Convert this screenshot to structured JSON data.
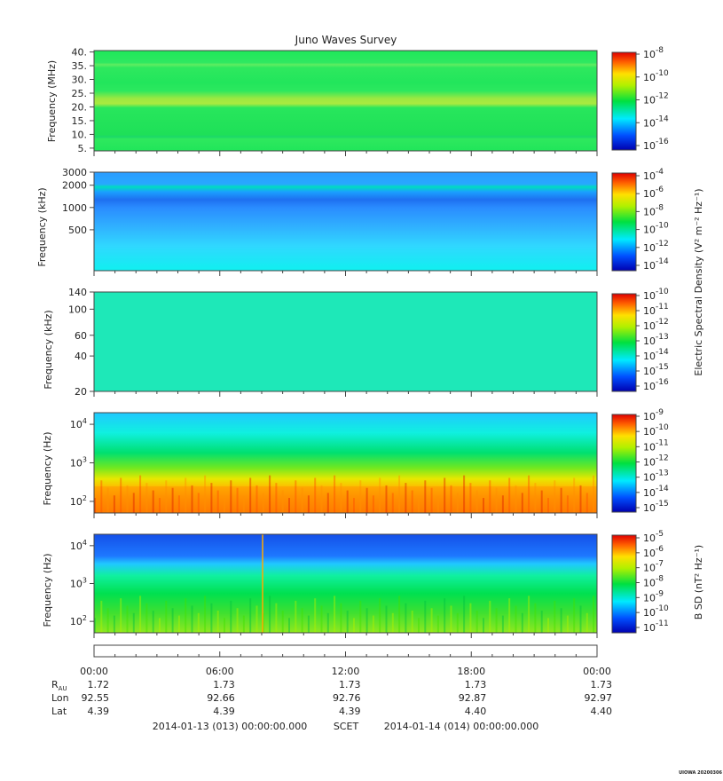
{
  "chart_data": {
    "type": "heatmap",
    "title": "Juno Waves Survey",
    "panels": [
      {
        "name": "mhz",
        "ylabel": "Frequency (MHz)",
        "yscale": "linear",
        "ylim": [
          4,
          40.5
        ],
        "yticks": [
          {
            "v": 5,
            "label": "5."
          },
          {
            "v": 10,
            "label": "10."
          },
          {
            "v": 15,
            "label": "15."
          },
          {
            "v": 20,
            "label": "20."
          },
          {
            "v": 25,
            "label": "25."
          },
          {
            "v": 30,
            "label": "30."
          },
          {
            "v": 35,
            "label": "35."
          },
          {
            "v": 40,
            "label": "40."
          }
        ],
        "colorbar": {
          "ticks": [
            "-8",
            "-10",
            "-12",
            "-14",
            "-16"
          ],
          "label": ""
        }
      },
      {
        "name": "khz-hi",
        "ylabel": "Frequency (kHz)",
        "yscale": "log",
        "ylim": [
          140,
          3000
        ],
        "yticks": [
          {
            "v": 500,
            "label": "500"
          },
          {
            "v": 1000,
            "label": "1000"
          },
          {
            "v": 2000,
            "label": "2000"
          },
          {
            "v": 3000,
            "label": "3000"
          }
        ],
        "colorbar": {
          "ticks": [
            "-4",
            "-6",
            "-8",
            "-10",
            "-12",
            "-14"
          ],
          "label": "Electric Spectral Density (V² m⁻² Hz⁻¹)"
        }
      },
      {
        "name": "khz-lo",
        "ylabel": "Frequency (kHz)",
        "yscale": "log",
        "ylim": [
          20,
          140
        ],
        "yticks": [
          {
            "v": 20,
            "label": "20"
          },
          {
            "v": 40,
            "label": "40"
          },
          {
            "v": 60,
            "label": "60"
          },
          {
            "v": 100,
            "label": "100"
          },
          {
            "v": 140,
            "label": "140"
          }
        ],
        "colorbar": {
          "ticks": [
            "-10",
            "-11",
            "-12",
            "-13",
            "-14",
            "-15",
            "-16"
          ],
          "label": ""
        }
      },
      {
        "name": "hz-e",
        "ylabel": "Frequency (Hz)",
        "yscale": "log",
        "ylim": [
          50,
          20000
        ],
        "yticks": [
          {
            "v": 100,
            "label": "10",
            "exp": "2"
          },
          {
            "v": 1000,
            "label": "10",
            "exp": "3"
          },
          {
            "v": 10000,
            "label": "10",
            "exp": "4"
          }
        ],
        "colorbar": {
          "ticks": [
            "-9",
            "-10",
            "-11",
            "-12",
            "-13",
            "-14",
            "-15"
          ],
          "label": ""
        }
      },
      {
        "name": "hz-b",
        "ylabel": "Frequency (Hz)",
        "yscale": "log",
        "ylim": [
          50,
          20000
        ],
        "yticks": [
          {
            "v": 100,
            "label": "10",
            "exp": "2"
          },
          {
            "v": 1000,
            "label": "10",
            "exp": "3"
          },
          {
            "v": 10000,
            "label": "10",
            "exp": "4"
          }
        ],
        "colorbar": {
          "ticks": [
            "-5",
            "-6",
            "-7",
            "-8",
            "-9",
            "-10",
            "-11"
          ],
          "label": "B SD (nT² Hz⁻¹)"
        }
      }
    ],
    "x_ticks": [
      "00:00",
      "06:00",
      "12:00",
      "18:00",
      "00:00"
    ],
    "ephemeris": [
      {
        "label": "R",
        "sub": "AU",
        "values": [
          "1.72",
          "1.73",
          "1.73",
          "1.73",
          "1.73"
        ]
      },
      {
        "label": "Lon",
        "values": [
          "92.55",
          "92.66",
          "92.76",
          "92.87",
          "92.97"
        ]
      },
      {
        "label": "Lat",
        "values": [
          "4.39",
          "4.39",
          "4.39",
          "4.40",
          "4.40"
        ]
      }
    ],
    "time_range": {
      "start": "2014-01-13 (013) 00:00:00.000",
      "mid": "SCET",
      "end": "2014-01-14 (014) 00:00:00.000"
    }
  },
  "tick_base": "10",
  "footer_stamp": "UIOWA 20200306"
}
